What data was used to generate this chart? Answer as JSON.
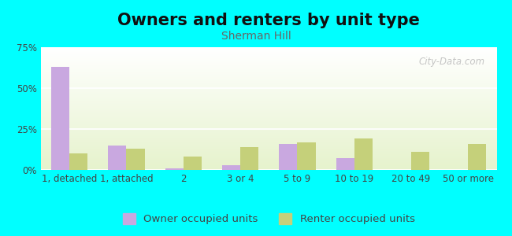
{
  "title": "Owners and renters by unit type",
  "subtitle": "Sherman Hill",
  "categories": [
    "1, detached",
    "1, attached",
    "2",
    "3 or 4",
    "5 to 9",
    "10 to 19",
    "20 to 49",
    "50 or more"
  ],
  "owner_values": [
    63,
    15,
    1,
    3,
    16,
    7,
    0,
    0
  ],
  "renter_values": [
    10,
    13,
    8,
    14,
    17,
    19,
    11,
    16
  ],
  "owner_color": "#c9a8e0",
  "renter_color": "#c5d07a",
  "background_color": "#00ffff",
  "ylim_max": 75,
  "yticks": [
    0,
    25,
    50,
    75
  ],
  "ytick_labels": [
    "0%",
    "25%",
    "50%",
    "75%"
  ],
  "title_fontsize": 15,
  "subtitle_fontsize": 10,
  "tick_fontsize": 8.5,
  "legend_fontsize": 9.5,
  "bar_width": 0.32,
  "watermark": "City-Data.com"
}
